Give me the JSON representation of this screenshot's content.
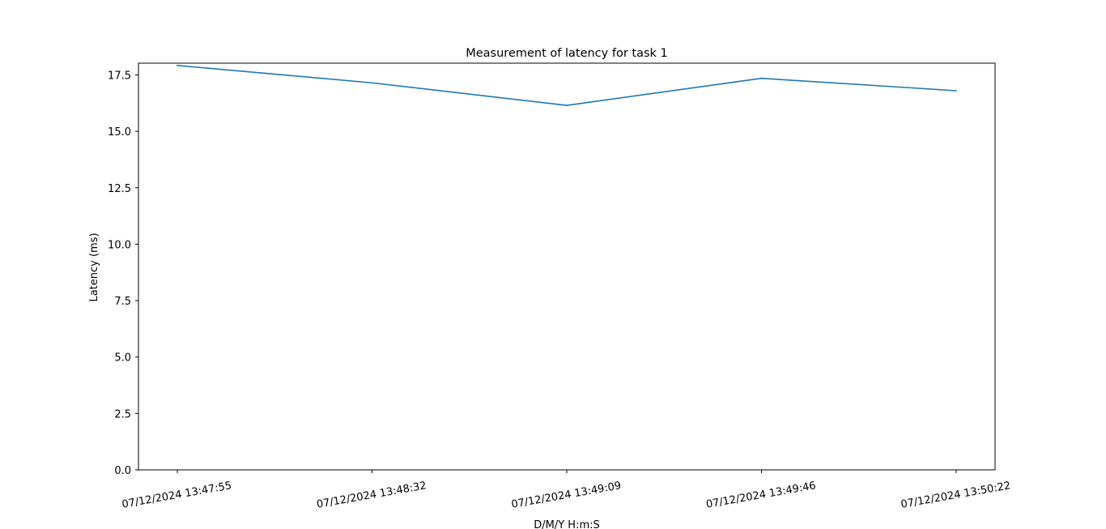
{
  "chart_data": {
    "type": "line",
    "title": "Measurement of latency for task 1",
    "xlabel": "D/M/Y H:m:S",
    "ylabel": "Latency (ms)",
    "x": [
      "07/12/2024 13:47:55",
      "07/12/2024 13:48:32",
      "07/12/2024 13:49:09",
      "07/12/2024 13:49:46",
      "07/12/2024 13:50:22"
    ],
    "series": [
      {
        "values": [
          17.92,
          17.15,
          16.15,
          17.35,
          16.8
        ],
        "color": "#1f77b4"
      }
    ],
    "ylim": [
      0,
      18.02
    ],
    "yticks": [
      0.0,
      2.5,
      5.0,
      7.5,
      10.0,
      12.5,
      15.0,
      17.5
    ],
    "ytick_labels": [
      "0.0",
      "2.5",
      "5.0",
      "7.5",
      "10.0",
      "12.5",
      "15.0",
      "17.5"
    ],
    "grid": false,
    "legend": "none"
  }
}
